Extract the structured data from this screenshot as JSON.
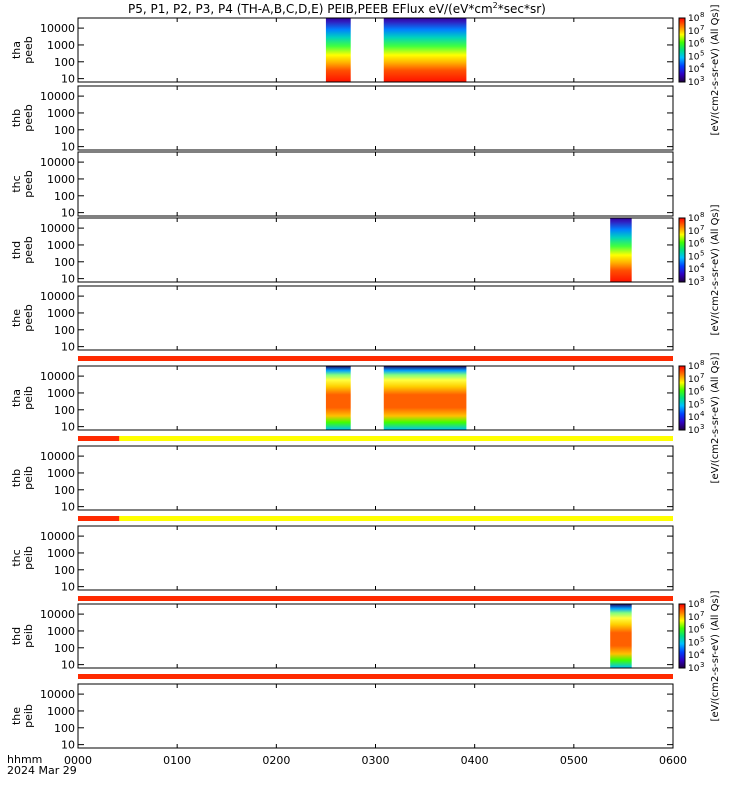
{
  "title": {
    "probes": "P5, P1, P2, P3, P4",
    "missions": "(TH-A,B,C,D,E)",
    "instr": "PEIB,PEEB",
    "quantity": "EFlux",
    "unit_pre": "eV/(eV*cm",
    "unit_exp": "2",
    "unit_post": "*sec*sr)"
  },
  "axis_footer": {
    "hhmm": "hhmm",
    "date": "2024 Mar 29"
  },
  "colorbar": {
    "ticks": [
      {
        "base": "10",
        "exp": "3"
      },
      {
        "base": "10",
        "exp": "4"
      },
      {
        "base": "10",
        "exp": "5"
      },
      {
        "base": "10",
        "exp": "6"
      },
      {
        "base": "10",
        "exp": "7"
      },
      {
        "base": "10",
        "exp": "8"
      }
    ],
    "label_eeb": "[eV/(cm2-s-sr-eV) (All",
    "label_eeb_full": "[eV/(cm2-s-sr-eV) (All Qs)]",
    "label_eib": "eV/(cm2-s-sr-eV) (All Qs)",
    "label_eib_full": "[eV/(cm2-s-sr-eV) (All Qs)]"
  },
  "colors": {
    "quality_bad": "#ff2a00",
    "quality_warn": "#ffff00"
  },
  "chart_data": {
    "type": "heatmap",
    "x_unit": "hhmm",
    "x_ticks": [
      "0000",
      "0100",
      "0200",
      "0300",
      "0400",
      "0500",
      "0600"
    ],
    "xlim": [
      "0000",
      "0600"
    ],
    "y_scale": "log",
    "y_ticks": [
      "10",
      "100",
      "1000",
      "10000"
    ],
    "zlim_exp": [
      3,
      8
    ],
    "panels": [
      {
        "id": "tha_peeb",
        "label1": "tha",
        "label2": "peeb",
        "type": "heatmap",
        "data_spans": [
          [
            "0230",
            "0245"
          ],
          [
            "0305",
            "0355"
          ]
        ]
      },
      {
        "id": "thb_peeb",
        "label1": "thb",
        "label2": "peeb",
        "type": "heatmap",
        "data_spans": []
      },
      {
        "id": "thc_peeb",
        "label1": "thc",
        "label2": "peeb",
        "type": "heatmap",
        "data_spans": []
      },
      {
        "id": "thd_peeb",
        "label1": "thd",
        "label2": "peeb",
        "type": "heatmap",
        "data_spans": [
          [
            "0522",
            "0535"
          ]
        ]
      },
      {
        "id": "the_peeb",
        "label1": "the",
        "label2": "peeb",
        "type": "heatmap",
        "data_spans": []
      },
      {
        "id": "tha_peib",
        "label1": "tha",
        "label2": "peib",
        "type": "heatmap",
        "data_spans": [
          [
            "0230",
            "0245"
          ],
          [
            "0305",
            "0355"
          ]
        ]
      },
      {
        "id": "thb_peib",
        "label1": "thb",
        "label2": "peib",
        "type": "heatmap",
        "data_spans": []
      },
      {
        "id": "thc_peib",
        "label1": "thc",
        "label2": "peib",
        "type": "heatmap",
        "data_spans": []
      },
      {
        "id": "thd_peib",
        "label1": "thd",
        "label2": "peib",
        "type": "heatmap",
        "data_spans": [
          [
            "0522",
            "0535"
          ]
        ]
      },
      {
        "id": "the_peib",
        "label1": "the",
        "label2": "peib",
        "type": "heatmap",
        "data_spans": []
      }
    ],
    "quality_bars": [
      {
        "after_panel": "the_peeb",
        "segments": [
          {
            "from": "0000",
            "to": "0600",
            "level": "bad"
          }
        ]
      },
      {
        "after_panel": "tha_peib",
        "segments": [
          {
            "from": "0000",
            "to": "0025",
            "level": "bad"
          },
          {
            "from": "0025",
            "to": "0600",
            "level": "warn"
          }
        ]
      },
      {
        "after_panel": "thb_peib",
        "segments": [
          {
            "from": "0000",
            "to": "0025",
            "level": "bad"
          },
          {
            "from": "0025",
            "to": "0600",
            "level": "warn"
          }
        ]
      },
      {
        "after_panel": "thc_peib",
        "segments": [
          {
            "from": "0000",
            "to": "0600",
            "level": "bad"
          }
        ]
      },
      {
        "after_panel": "thd_peib",
        "segments": [
          {
            "from": "0000",
            "to": "0600",
            "level": "bad"
          }
        ]
      }
    ]
  }
}
